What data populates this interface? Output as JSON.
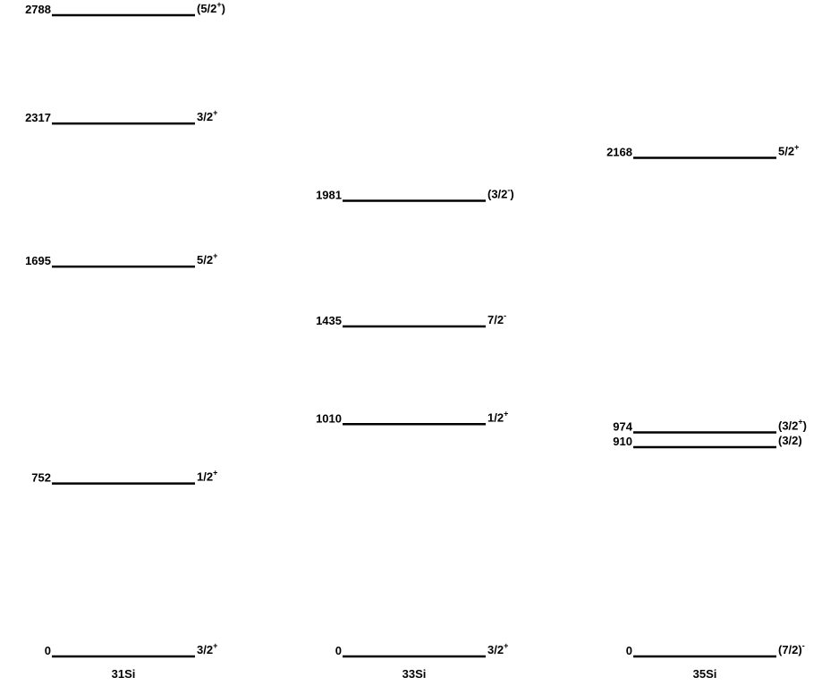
{
  "nuclei": [
    {
      "name": "31Si",
      "levels": [
        {
          "energy": 2788,
          "spin": {
            "text": "(5/2",
            "parity": "+",
            "close": ")"
          }
        },
        {
          "energy": 2317,
          "spin": {
            "text": "3/2",
            "parity": "+"
          }
        },
        {
          "energy": 1695,
          "spin": {
            "text": "5/2",
            "parity": "+"
          }
        },
        {
          "energy": 752,
          "spin": {
            "text": "1/2",
            "parity": "+"
          }
        },
        {
          "energy": 0,
          "spin": {
            "text": "3/2",
            "parity": "+"
          }
        }
      ]
    },
    {
      "name": "33Si",
      "levels": [
        {
          "energy": 1981,
          "spin": {
            "text": "(3/2",
            "parity": "-",
            "close": ")"
          }
        },
        {
          "energy": 1435,
          "spin": {
            "text": "7/2",
            "parity": "-"
          }
        },
        {
          "energy": 1010,
          "spin": {
            "text": "1/2",
            "parity": "+"
          }
        },
        {
          "energy": 0,
          "spin": {
            "text": "3/2",
            "parity": "+"
          }
        }
      ]
    },
    {
      "name": "35Si",
      "levels": [
        {
          "energy": 2168,
          "spin": {
            "text": "5/2",
            "parity": "+"
          }
        },
        {
          "energy": 974,
          "spin": {
            "text": "(3/2",
            "parity": "+",
            "close": ")"
          }
        },
        {
          "energy": 910,
          "spin": {
            "text": "(3/2)"
          }
        },
        {
          "energy": 0,
          "spin": {
            "text": "(7/2)",
            "parity": "-"
          }
        }
      ]
    }
  ]
}
